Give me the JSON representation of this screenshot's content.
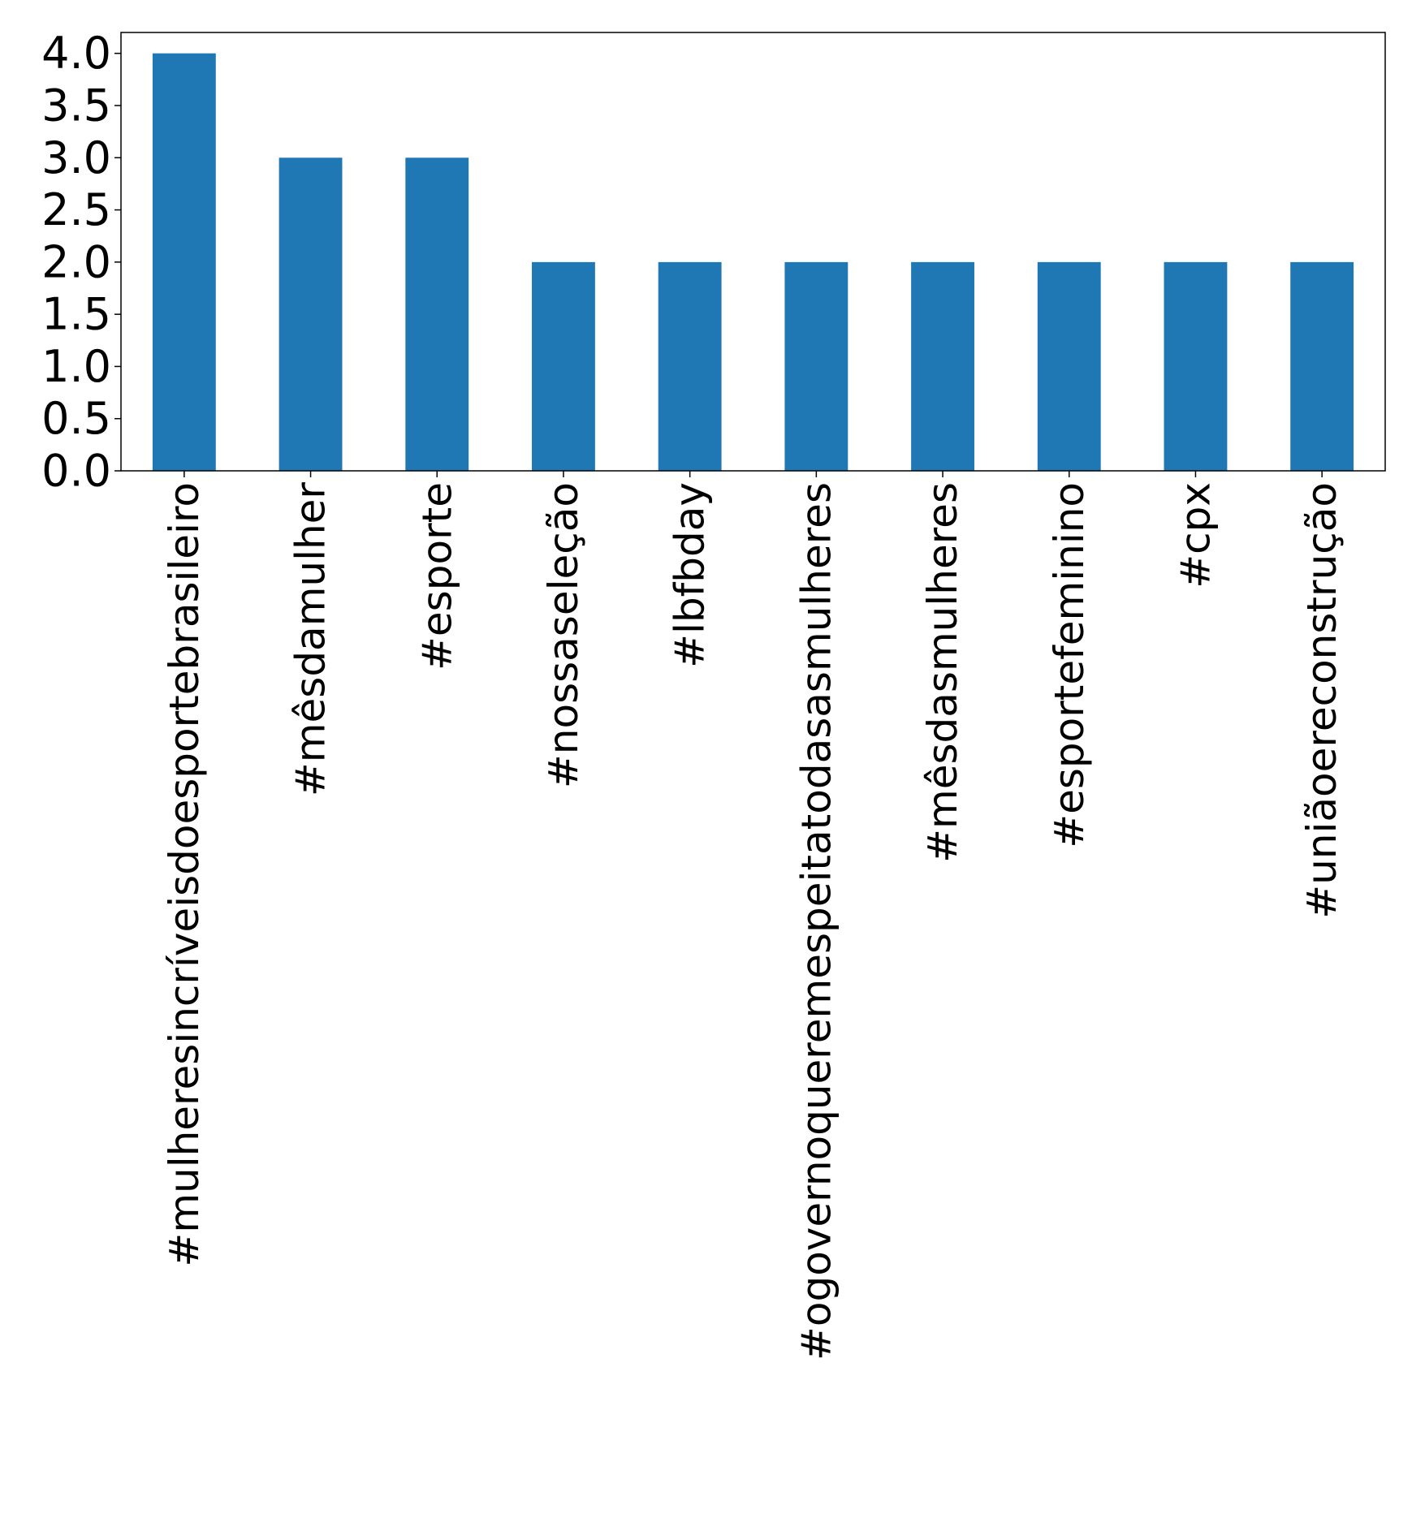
{
  "chart_data": {
    "type": "bar",
    "title": "",
    "xlabel": "",
    "ylabel": "",
    "categories": [
      "#mulheresincríveisdoesportebrasileiro",
      "#mêsdamulher",
      "#esporte",
      "#nossaseleção",
      "#lbfbday",
      "#ogovernoqueremespeitatodasasmulheres",
      "#mêsdasmulheres",
      "#esportefeminino",
      "#cpx",
      "#uniãoereconstrução"
    ],
    "values": [
      4,
      3,
      3,
      2,
      2,
      2,
      2,
      2,
      2,
      2
    ],
    "ylim": [
      0,
      4.2
    ],
    "yticks": [
      "0.0",
      "0.5",
      "1.0",
      "1.5",
      "2.0",
      "2.5",
      "3.0",
      "3.5",
      "4.0"
    ],
    "grid": false,
    "legend": "none",
    "bar_color": "#1f77b4"
  }
}
